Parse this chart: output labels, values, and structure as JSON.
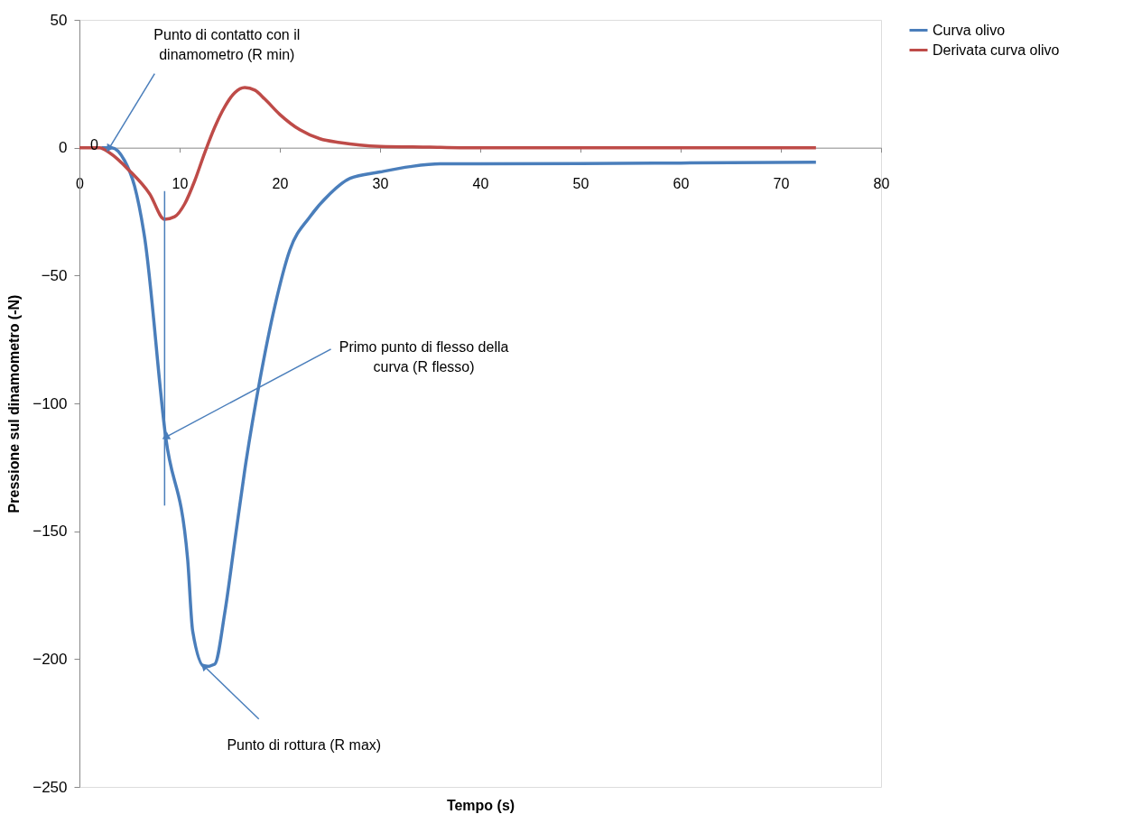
{
  "chart_data": {
    "type": "line",
    "xlabel": "Tempo (s)",
    "ylabel": "Pressione sul dinamometro (-N)",
    "xlim": [
      0,
      80
    ],
    "xticks": [
      0,
      10,
      20,
      30,
      40,
      50,
      60,
      70,
      80
    ],
    "ylim": [
      -250,
      50
    ],
    "yticks": [
      -250,
      -200,
      -150,
      -100,
      -50,
      0,
      50
    ],
    "grid": false,
    "legend": "right",
    "marker": "none",
    "line_style": "solid",
    "series": [
      {
        "name": "Curva olivo",
        "color": "#4a7ebb",
        "x": [
          2.2,
          3.2,
          4.5,
          5.5,
          6.5,
          8.6,
          10.8,
          11.3,
          12.5,
          13.5,
          14.5,
          15.5,
          16.5,
          18,
          19.5,
          21,
          23,
          25,
          27,
          30,
          33,
          36,
          40,
          50,
          60,
          73.5
        ],
        "values": [
          0,
          0,
          -5,
          -15,
          -35,
          -113,
          -161,
          -189,
          -203,
          -202,
          -182,
          -154,
          -126,
          -91,
          -62,
          -40,
          -27,
          -18,
          -12,
          -9.5,
          -7.4,
          -6.3,
          -6.3,
          -6.2,
          -6,
          -5.7
        ]
      },
      {
        "name": "Derivata curva olivo",
        "color": "#be4b48",
        "x": [
          0,
          2,
          3,
          5,
          7,
          8.5,
          9.5,
          10.5,
          11.5,
          12.5,
          13.5,
          14.5,
          15.5,
          16.5,
          17.5,
          18.5,
          20,
          22,
          24,
          26,
          28,
          30,
          35,
          38,
          73.5
        ],
        "values": [
          0,
          0,
          -2,
          -9,
          -18,
          -28,
          -27,
          -22,
          -13,
          -2,
          8,
          16,
          21.5,
          23.5,
          22.5,
          19,
          13,
          7,
          3.5,
          2,
          1,
          0.5,
          0.2,
          0,
          0
        ]
      },
      {
        "type": "line",
        "color": "#4a7ebb",
        "x": [
          8.5,
          8.5
        ],
        "values": [
          -17,
          -140
        ]
      }
    ],
    "annotations": [
      {
        "text": "Punto di contatto con il\ndinamometro (R min)",
        "x": 3,
        "y": 0
      },
      {
        "text": "Primo punto di flesso della\ncurva (R flesso)",
        "x": 8.7,
        "y": -113
      },
      {
        "text": "Punto di rottura (R max)",
        "x": 12.5,
        "y": -203
      },
      {
        "text": "0",
        "x": 2.2,
        "y": 0
      }
    ]
  }
}
